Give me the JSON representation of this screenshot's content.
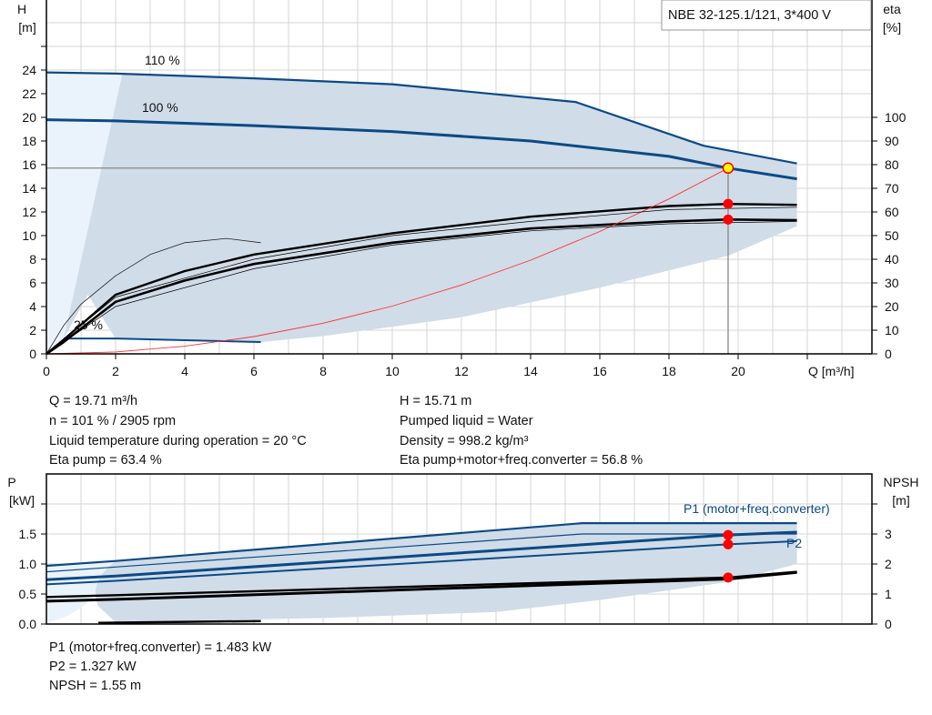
{
  "title_box": "NBE 32-125.1/121, 3*400 V",
  "info_top": {
    "left": [
      "Q = 19.71 m³/h",
      "n = 101 % / 2905 rpm",
      "Liquid temperature during operation = 20 °C",
      "Eta pump = 63.4 %"
    ],
    "right": [
      "H = 15.71 m",
      "Pumped liquid = Water",
      "Density = 998.2 kg/m³",
      "Eta pump+motor+freq.converter = 56.8 %"
    ]
  },
  "info_bottom": [
    "P1 (motor+freq.converter) = 1.483 kW",
    "P2 = 1.327 kW",
    "NPSH = 1.55 m"
  ],
  "colors": {
    "curve_blue": "#0b4a86",
    "envelope": "#d0dce8",
    "envelope_light": "#eaf3fc",
    "duty_point": "#ff0000",
    "duty_fill": "#ffff00",
    "system_curve": "#ff3030"
  },
  "chart_data": [
    {
      "type": "line",
      "xlabel": "Q [m³/h]",
      "ylabel": "H\n[m]",
      "ylabel_lines": [
        "H",
        "[m]"
      ],
      "y2label_lines": [
        "eta",
        "[%]"
      ],
      "xlim": [
        0,
        23.9
      ],
      "ylim": [
        0,
        30
      ],
      "y2lim": [
        0,
        115
      ],
      "xticks": [
        "0",
        "2",
        "4",
        "6",
        "8",
        "10",
        "12",
        "14",
        "16",
        "18",
        "20"
      ],
      "yticks": [
        "0",
        "2",
        "4",
        "6",
        "8",
        "10",
        "12",
        "14",
        "16",
        "18",
        "20",
        "22",
        "24"
      ],
      "y2ticks": [
        "0",
        "10",
        "20",
        "30",
        "40",
        "50",
        "60",
        "70",
        "80",
        "90",
        "100"
      ],
      "grid": true,
      "series": [
        {
          "name": "110 %",
          "axis": "H",
          "x": [
            0,
            2,
            6,
            10,
            15.3,
            19,
            21.7
          ],
          "y": [
            23.8,
            23.7,
            23.3,
            22.8,
            21.3,
            17.6,
            16.1
          ]
        },
        {
          "name": "100 %",
          "axis": "H",
          "x": [
            0,
            2,
            6,
            10,
            14,
            18,
            19.71,
            21.7
          ],
          "y": [
            19.8,
            19.7,
            19.3,
            18.8,
            18.0,
            16.7,
            15.71,
            14.8
          ]
        },
        {
          "name": "25 %",
          "axis": "H",
          "x": [
            0.5,
            2,
            6.2
          ],
          "y": [
            1.3,
            1.3,
            1.0
          ]
        },
        {
          "axis": "eta",
          "x": [
            0,
            0.5,
            1,
            2,
            3,
            4,
            5.2,
            6.2
          ],
          "y": [
            0,
            12,
            21,
            33,
            42,
            47,
            48.8,
            47
          ]
        },
        {
          "axis": "eta",
          "x": [
            0,
            0.5,
            2,
            4,
            6,
            10,
            14,
            18,
            19.71,
            21.7
          ],
          "y": [
            0,
            6,
            25,
            35,
            42,
            51,
            58,
            62.5,
            63.4,
            63
          ]
        },
        {
          "axis": "eta",
          "x": [
            0,
            0.5,
            2,
            4,
            6,
            10,
            14,
            18,
            19.71,
            21.7
          ],
          "y": [
            0,
            5,
            22,
            31,
            38,
            47,
            53,
            56,
            56.8,
            56.5
          ]
        },
        {
          "axis": "H",
          "x": [
            0,
            2,
            4,
            6,
            8,
            10,
            12,
            14,
            16,
            18,
            19.71
          ],
          "y": [
            0,
            0.16,
            0.65,
            1.46,
            2.59,
            4.04,
            5.82,
            7.92,
            10.35,
            13.1,
            15.71
          ]
        }
      ],
      "envelope": {
        "upper_x": [
          2.2,
          6,
          10,
          15.3,
          19,
          21.7
        ],
        "upper_y": [
          23.7,
          23.3,
          22.8,
          21.3,
          17.6,
          16.1
        ],
        "lower_x": [
          21.7,
          19.71,
          16,
          12,
          8,
          6.2,
          2,
          1.2,
          0.5
        ],
        "lower_y": [
          10.8,
          8.3,
          5.6,
          3.1,
          1.5,
          1.0,
          1.3,
          5,
          1.3
        ]
      },
      "duty_point": {
        "Q": 19.71,
        "H": 15.71,
        "eta_pump": 63.4,
        "eta_total": 56.8
      }
    },
    {
      "type": "line",
      "ylabel_lines": [
        "P",
        "[kW]"
      ],
      "y2label_lines": [
        "NPSH",
        "[m]"
      ],
      "xlim": [
        0,
        23.9
      ],
      "ylim": [
        0,
        2.5
      ],
      "y2lim": [
        0,
        5
      ],
      "yticks": [
        "0.0",
        "0.5",
        "1.0",
        "1.5"
      ],
      "y2ticks": [
        "0",
        "1",
        "2",
        "3"
      ],
      "grid": true,
      "series": [
        {
          "name": "P1 (motor+freq.converter)",
          "axis": "P",
          "x": [
            0,
            2,
            15.5,
            21.7
          ],
          "y": [
            0.97,
            1.05,
            1.68,
            1.68
          ]
        },
        {
          "axis": "P",
          "x": [
            0,
            2,
            15.5,
            21.7
          ],
          "y": [
            0.87,
            0.95,
            1.5,
            1.5
          ]
        },
        {
          "axis": "P",
          "x": [
            0,
            2,
            19.71,
            21.7
          ],
          "y": [
            0.74,
            0.8,
            1.483,
            1.53
          ]
        },
        {
          "name": "P2",
          "axis": "P",
          "x": [
            0,
            2,
            19.71,
            21.7
          ],
          "y": [
            0.66,
            0.72,
            1.327,
            1.38
          ]
        },
        {
          "axis": "NPSH",
          "x": [
            0,
            2,
            19.71,
            21.7
          ],
          "y": [
            0.9,
            0.96,
            1.55,
            1.74
          ]
        },
        {
          "axis": "NPSH",
          "x": [
            0,
            2,
            19.71,
            21.7
          ],
          "y": [
            0.76,
            0.82,
            1.5,
            1.72
          ]
        },
        {
          "axis": "P",
          "x": [
            1.5,
            6.2
          ],
          "y": [
            0.02,
            0.05
          ]
        }
      ],
      "envelope": {
        "upper_x": [
          2,
          15.5,
          21.7
        ],
        "upper_y": [
          1.05,
          1.68,
          1.68
        ],
        "lower_x": [
          21.7,
          19.71,
          16,
          13,
          8,
          2,
          1.5
        ],
        "lower_y": [
          1.0,
          0.7,
          0.4,
          0.2,
          0.1,
          0.03,
          0.3
        ]
      },
      "duty_points": [
        {
          "axis": "P",
          "Q": 19.71,
          "value": 1.483
        },
        {
          "axis": "P",
          "Q": 19.71,
          "value": 1.327
        },
        {
          "axis": "NPSH",
          "Q": 19.71,
          "value": 1.55
        }
      ]
    }
  ]
}
